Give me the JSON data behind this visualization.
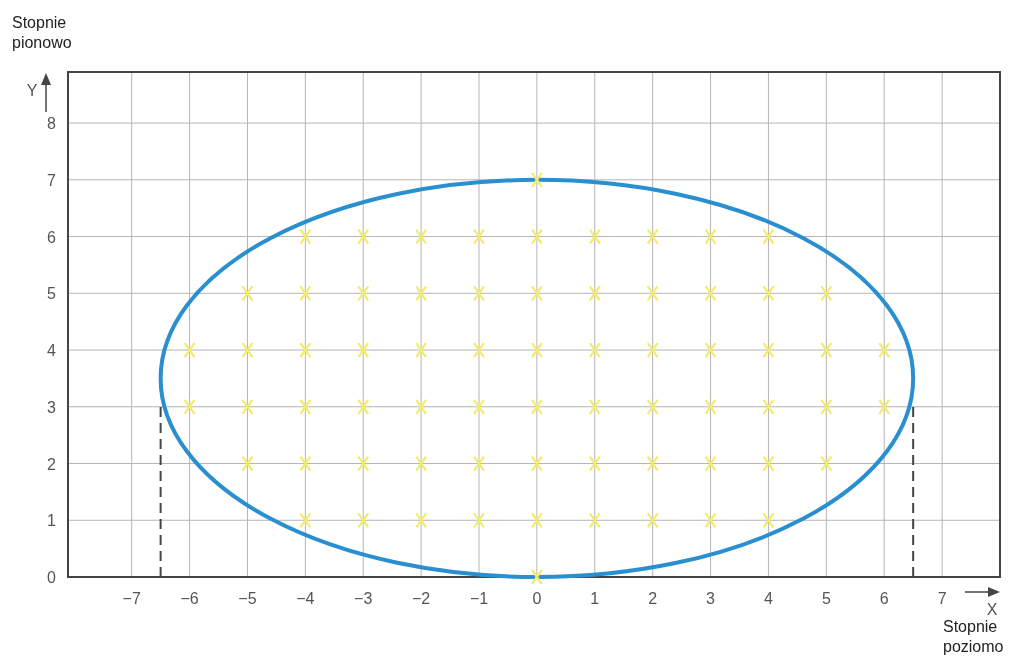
{
  "chart_data": {
    "type": "scatter",
    "xlabel": "X",
    "ylabel": "Y",
    "annotations": [
      "Stopnie pionowo",
      "Stopnie poziomo"
    ],
    "xlim": [
      -8.1,
      8
    ],
    "ylim": [
      0,
      8.9
    ],
    "xticks": [
      {
        "value": -7,
        "label": "−7"
      },
      {
        "value": -6,
        "label": "−6"
      },
      {
        "value": -5,
        "label": "−5"
      },
      {
        "value": -4,
        "label": "−4"
      },
      {
        "value": -3,
        "label": "−3"
      },
      {
        "value": -2,
        "label": "−2"
      },
      {
        "value": -1,
        "label": "−1"
      },
      0,
      1,
      2,
      3,
      4,
      5,
      6,
      7
    ],
    "yticks": [
      0,
      1,
      2,
      3,
      4,
      5,
      6,
      7,
      8
    ],
    "grid": true,
    "marker": "cross",
    "series": [
      {
        "type": "line",
        "color": "#444444",
        "line_style": "dashed",
        "marker": "none",
        "x": [
          -6.5,
          -6.5
        ],
        "values": [
          0,
          3
        ]
      },
      {
        "type": "line",
        "color": "#444444",
        "line_style": "dashed",
        "marker": "none",
        "x": [
          6.5,
          6.5
        ],
        "values": [
          0,
          3
        ]
      },
      {
        "color": "#f2ec6a",
        "x": [
          0,
          -4,
          -3,
          -2,
          -1,
          0,
          1,
          2,
          3,
          4,
          -5,
          -4,
          -3,
          -2,
          -1,
          0,
          1,
          2,
          3,
          4,
          5,
          -6,
          -5,
          -4,
          -3,
          -2,
          -1,
          0,
          1,
          2,
          3,
          4,
          5,
          6,
          -6,
          -5,
          -4,
          -3,
          -2,
          -1,
          0,
          1,
          2,
          3,
          4,
          5,
          6,
          -5,
          -4,
          -3,
          -2,
          -1,
          0,
          1,
          2,
          3,
          4,
          5,
          -4,
          -3,
          -2,
          -1,
          0,
          1,
          2,
          3,
          4,
          0
        ],
        "values": [
          7,
          6,
          6,
          6,
          6,
          6,
          6,
          6,
          6,
          6,
          5,
          5,
          5,
          5,
          5,
          5,
          5,
          5,
          5,
          5,
          5,
          4,
          4,
          4,
          4,
          4,
          4,
          4,
          4,
          4,
          4,
          4,
          4,
          4,
          3,
          3,
          3,
          3,
          3,
          3,
          3,
          3,
          3,
          3,
          3,
          3,
          3,
          2,
          2,
          2,
          2,
          2,
          2,
          2,
          2,
          2,
          2,
          2,
          1,
          1,
          1,
          1,
          1,
          1,
          1,
          1,
          1,
          0
        ]
      }
    ]
  }
}
